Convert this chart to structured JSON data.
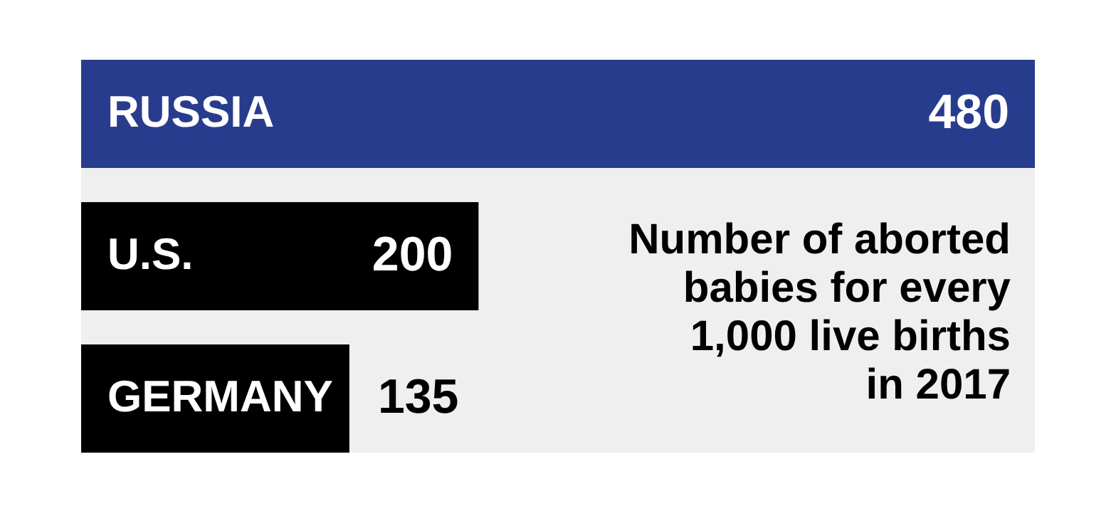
{
  "chart_data": {
    "type": "bar",
    "orientation": "horizontal",
    "title": "Number of aborted babies for every 1,000 live births in 2017",
    "categories": [
      "RUSSIA",
      "U.S.",
      "GERMANY"
    ],
    "values": [
      480,
      200,
      135
    ],
    "colors": [
      "#283c8e",
      "#000000",
      "#000000"
    ],
    "data_labels": true
  }
}
